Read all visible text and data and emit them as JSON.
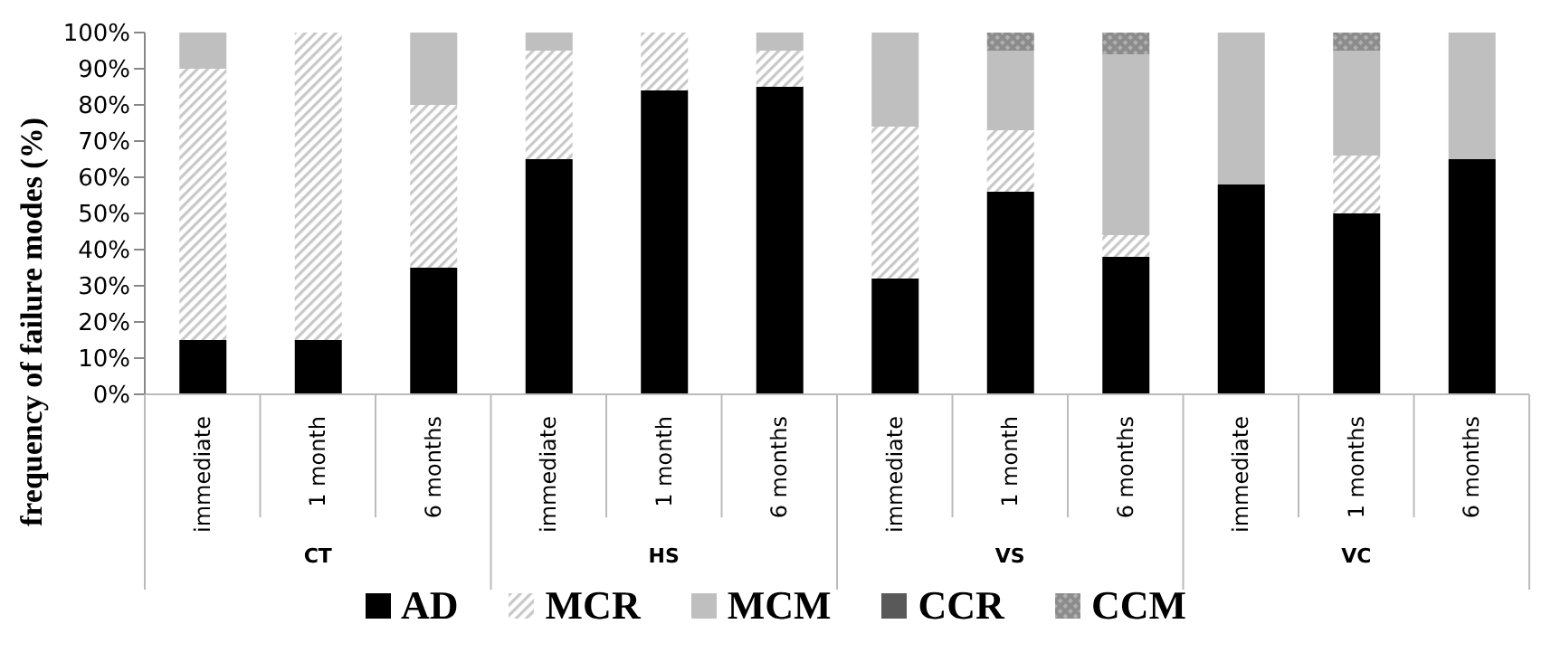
{
  "chart_data": {
    "type": "bar",
    "stacked": true,
    "ylabel": "frequency of failure modes (%)",
    "categories": [
      "immediate",
      "1 month",
      "6 months",
      "immediate",
      "1 month",
      "6 months",
      "immediate",
      "1 month",
      "6 months",
      "immediate",
      "1 months",
      "6 months"
    ],
    "annotations": [
      "CT",
      "HS",
      "VS",
      "VC"
    ],
    "series": [
      {
        "name": "AD",
        "color": "#000000",
        "values": [
          15,
          15,
          35,
          65,
          84,
          85,
          32,
          56,
          38,
          58,
          50,
          65
        ]
      },
      {
        "name": "MCR",
        "color": "#c8c8c8",
        "values": [
          75,
          85,
          45,
          30,
          16,
          10,
          42,
          17,
          6,
          0,
          16,
          0
        ]
      },
      {
        "name": "MCM",
        "color": "#bfbfbf",
        "values": [
          10,
          0,
          20,
          5,
          0,
          5,
          26,
          22,
          50,
          42,
          29,
          35
        ]
      },
      {
        "name": "CCR",
        "color": "#595959",
        "values": [
          0,
          0,
          0,
          0,
          0,
          0,
          0,
          0,
          0,
          0,
          0,
          0
        ]
      },
      {
        "name": "CCM",
        "color": "#8c8c8c",
        "values": [
          0,
          0,
          0,
          0,
          0,
          0,
          0,
          5,
          6,
          0,
          5,
          0
        ]
      }
    ],
    "ylim": [
      0,
      100
    ],
    "yticks": [
      {
        "value": 0,
        "label": "0%"
      },
      {
        "value": 10,
        "label": "10%"
      },
      {
        "value": 20,
        "label": "20%"
      },
      {
        "value": 30,
        "label": "30%"
      },
      {
        "value": 40,
        "label": "40%"
      },
      {
        "value": 50,
        "label": "50%"
      },
      {
        "value": 60,
        "label": "60%"
      },
      {
        "value": 70,
        "label": "70%"
      },
      {
        "value": 80,
        "label": "80%"
      },
      {
        "value": 90,
        "label": "90%"
      },
      {
        "value": 100,
        "label": "100%"
      }
    ],
    "grid": false,
    "legend": "bottom"
  }
}
